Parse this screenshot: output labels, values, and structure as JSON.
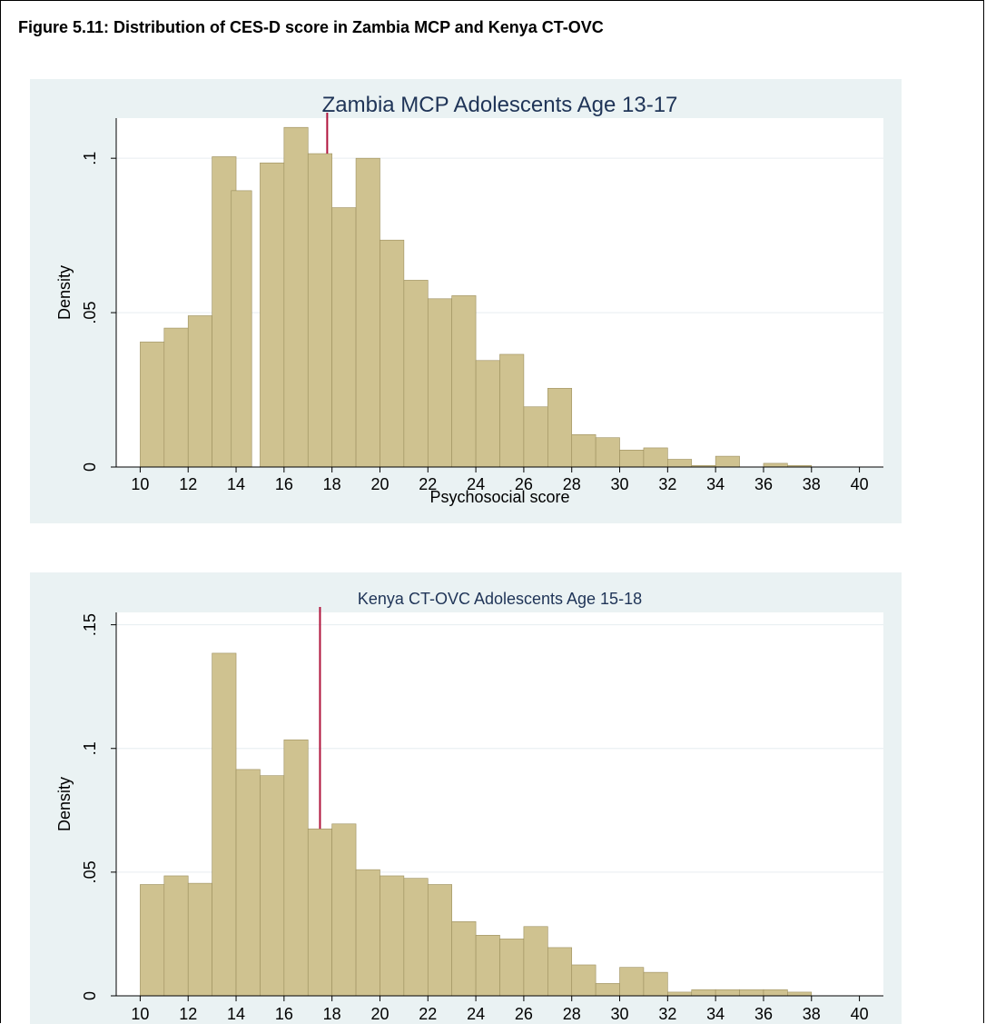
{
  "figure_title": "Figure 5.11: Distribution of CES-D score in Zambia MCP and Kenya CT-OVC",
  "colors": {
    "panel_bg": "#eaf2f3",
    "plot_bg": "#ffffff",
    "bar_fill": "#cfc290",
    "bar_edge": "#9c8f5e",
    "ref_line": "#b0143c",
    "grid": "#e6eef0",
    "title": "#1f3457"
  },
  "chart_data": [
    {
      "type": "bar",
      "title": "Zambia MCP Adolescents Age 13-17",
      "xlabel": "Psychosocial score",
      "ylabel": "Density",
      "xlim": [
        9,
        41
      ],
      "ylim": [
        0,
        0.113
      ],
      "xticks": [
        10,
        12,
        14,
        16,
        18,
        20,
        22,
        24,
        26,
        28,
        30,
        32,
        34,
        36,
        38,
        40
      ],
      "yticks": [
        {
          "value": 0,
          "label": "0"
        },
        {
          "value": 0.05,
          "label": ".05"
        },
        {
          "value": 0.1,
          "label": ".1"
        }
      ],
      "bin_width": 1,
      "bins": [
        {
          "x": 10,
          "y": 0.0405
        },
        {
          "x": 11,
          "y": 0.045
        },
        {
          "x": 12,
          "y": 0.049
        },
        {
          "x": 13,
          "y": 0.1005
        },
        {
          "x": 14,
          "y": 0
        },
        {
          "x": 13.8,
          "y": 0.0895,
          "w": 0.85
        },
        {
          "x": 15,
          "y": 0.0985
        },
        {
          "x": 16,
          "y": 0.11
        },
        {
          "x": 17,
          "y": 0.1015
        },
        {
          "x": 18,
          "y": 0.084
        },
        {
          "x": 19,
          "y": 0.1
        },
        {
          "x": 20,
          "y": 0.0735
        },
        {
          "x": 21,
          "y": 0.0605
        },
        {
          "x": 22,
          "y": 0.0545
        },
        {
          "x": 23,
          "y": 0.0555
        },
        {
          "x": 24,
          "y": 0.0345
        },
        {
          "x": 25,
          "y": 0.0365
        },
        {
          "x": 26,
          "y": 0.0195
        },
        {
          "x": 27,
          "y": 0.0255
        },
        {
          "x": 28,
          "y": 0.0105
        },
        {
          "x": 29,
          "y": 0.0095
        },
        {
          "x": 30,
          "y": 0.0055
        },
        {
          "x": 31,
          "y": 0.0062
        },
        {
          "x": 32,
          "y": 0.0025
        },
        {
          "x": 33,
          "y": 0.0005
        },
        {
          "x": 34,
          "y": 0.0035
        },
        {
          "x": 36,
          "y": 0.0012
        },
        {
          "x": 37,
          "y": 0.0005
        }
      ],
      "reference_line": 17.8
    },
    {
      "type": "bar",
      "title": "Kenya CT-OVC Adolescents Age 15-18",
      "xlabel": "",
      "ylabel": "Density",
      "xlim": [
        9,
        41
      ],
      "ylim": [
        0,
        0.155
      ],
      "xticks": [
        10,
        12,
        14,
        16,
        18,
        20,
        22,
        24,
        26,
        28,
        30,
        32,
        34,
        36,
        38,
        40
      ],
      "yticks": [
        {
          "value": 0,
          "label": "0"
        },
        {
          "value": 0.05,
          "label": ".05"
        },
        {
          "value": 0.1,
          "label": ".1"
        },
        {
          "value": 0.15,
          "label": ".15"
        }
      ],
      "bin_width": 1,
      "bins": [
        {
          "x": 10,
          "y": 0.045
        },
        {
          "x": 11,
          "y": 0.0485
        },
        {
          "x": 12,
          "y": 0.0455
        },
        {
          "x": 13,
          "y": 0.1385
        },
        {
          "x": 14,
          "y": 0.0915
        },
        {
          "x": 15,
          "y": 0.089
        },
        {
          "x": 16,
          "y": 0.1035
        },
        {
          "x": 17,
          "y": 0.0675
        },
        {
          "x": 18,
          "y": 0.0695
        },
        {
          "x": 19,
          "y": 0.051
        },
        {
          "x": 20,
          "y": 0.0485
        },
        {
          "x": 21,
          "y": 0.0475
        },
        {
          "x": 22,
          "y": 0.045
        },
        {
          "x": 23,
          "y": 0.03
        },
        {
          "x": 24,
          "y": 0.0245
        },
        {
          "x": 25,
          "y": 0.023
        },
        {
          "x": 26,
          "y": 0.028
        },
        {
          "x": 27,
          "y": 0.0195
        },
        {
          "x": 28,
          "y": 0.0125
        },
        {
          "x": 29,
          "y": 0.005
        },
        {
          "x": 30,
          "y": 0.0115
        },
        {
          "x": 31,
          "y": 0.0095
        },
        {
          "x": 32,
          "y": 0.0015
        },
        {
          "x": 33,
          "y": 0.0025
        },
        {
          "x": 34,
          "y": 0.0025
        },
        {
          "x": 35,
          "y": 0.0025
        },
        {
          "x": 36,
          "y": 0.0025
        },
        {
          "x": 37,
          "y": 0.0015
        }
      ],
      "reference_line": 17.5
    }
  ]
}
